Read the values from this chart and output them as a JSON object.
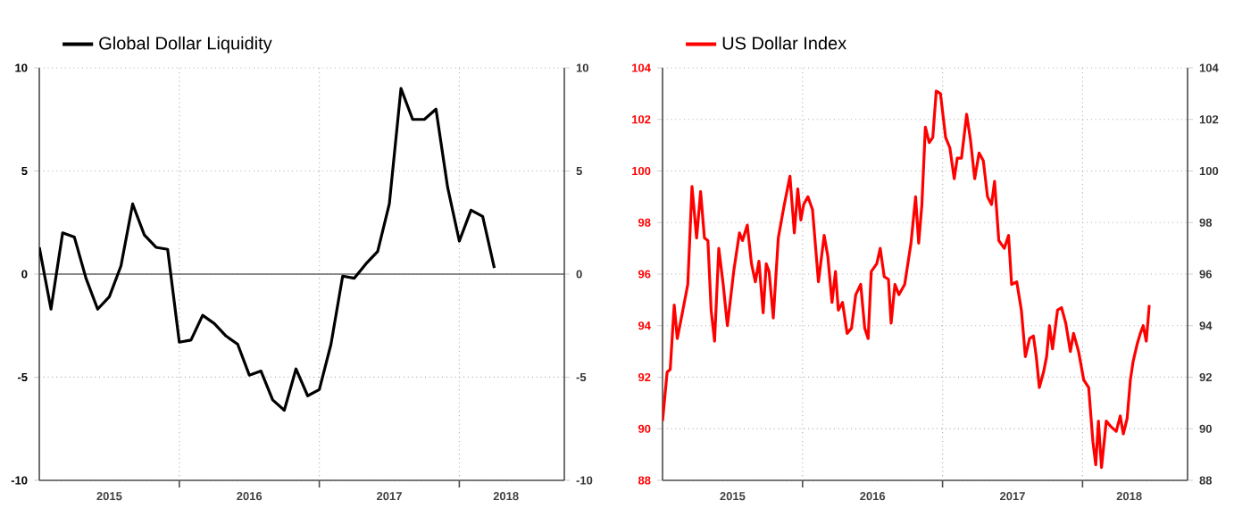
{
  "chart_data": [
    {
      "type": "line",
      "x": [
        "2015-01",
        "2015-02",
        "2015-03",
        "2015-04",
        "2015-05",
        "2015-06",
        "2015-07",
        "2015-08",
        "2015-09",
        "2015-10",
        "2015-11",
        "2015-12",
        "2016-01",
        "2016-02",
        "2016-03",
        "2016-04",
        "2016-05",
        "2016-06",
        "2016-07",
        "2016-08",
        "2016-09",
        "2016-10",
        "2016-11",
        "2016-12",
        "2017-01",
        "2017-02",
        "2017-03",
        "2017-04",
        "2017-05",
        "2017-06",
        "2017-07",
        "2017-08",
        "2017-09",
        "2017-10",
        "2017-11",
        "2017-12",
        "2018-01",
        "2018-02",
        "2018-03",
        "2018-04"
      ],
      "series": [
        {
          "name": "Global Dollar Liquidity",
          "color": "#000000",
          "values": [
            1.3,
            -1.7,
            2.0,
            1.8,
            -0.2,
            -1.7,
            -1.1,
            0.4,
            3.4,
            1.9,
            1.3,
            1.2,
            -3.3,
            -3.2,
            -2.0,
            -2.4,
            -3.0,
            -3.4,
            -4.9,
            -4.7,
            -6.1,
            -6.6,
            -4.6,
            -5.9,
            -5.6,
            -3.4,
            -0.1,
            -0.2,
            0.5,
            1.1,
            3.4,
            9.0,
            7.5,
            7.5,
            8.0,
            4.2,
            1.6,
            3.1,
            2.8,
            0.3
          ]
        }
      ],
      "xlim": [
        "2015-01",
        "2018-10"
      ],
      "xticks": [
        {
          "value": "2015-07",
          "label": "2015"
        },
        {
          "value": "2016-01",
          "label": null
        },
        {
          "value": "2016-07",
          "label": "2016"
        },
        {
          "value": "2017-01",
          "label": null
        },
        {
          "value": "2017-07",
          "label": "2017"
        },
        {
          "value": "2018-01",
          "label": null
        },
        {
          "value": "2018-05",
          "label": "2018"
        }
      ],
      "ylim": [
        -10,
        10
      ],
      "yticks": [
        -10,
        -5,
        0,
        5,
        10
      ],
      "y2lim": [
        -10,
        10
      ],
      "y2ticks": [
        -10,
        -5,
        0,
        5,
        10
      ],
      "ref_lines": [
        {
          "axis": "y",
          "value": 0
        }
      ],
      "grid": true,
      "legend": "top left"
    },
    {
      "type": "line",
      "x": [
        "2015-01-01",
        "2015-01-13",
        "2015-01-21",
        "2015-02-01",
        "2015-02-09",
        "2015-02-21",
        "2015-03-06",
        "2015-03-17",
        "2015-03-29",
        "2015-04-09",
        "2015-04-19",
        "2015-04-28",
        "2015-05-06",
        "2015-05-15",
        "2015-05-26",
        "2015-06-07",
        "2015-06-18",
        "2015-07-04",
        "2015-07-19",
        "2015-07-27",
        "2015-08-09",
        "2015-08-20",
        "2015-08-30",
        "2015-09-09",
        "2015-09-20",
        "2015-09-28",
        "2015-10-05",
        "2015-10-16",
        "2015-10-29",
        "2015-11-13",
        "2015-11-29",
        "2015-12-10",
        "2015-12-19",
        "2015-12-27",
        "2016-01-04",
        "2016-01-15",
        "2016-01-27",
        "2016-02-12",
        "2016-02-27",
        "2016-03-06",
        "2016-03-17",
        "2016-03-26",
        "2016-04-03",
        "2016-04-14",
        "2016-04-26",
        "2016-05-07",
        "2016-05-18",
        "2016-05-31",
        "2016-06-11",
        "2016-06-20",
        "2016-06-28",
        "2016-07-12",
        "2016-07-21",
        "2016-08-01",
        "2016-08-12",
        "2016-08-19",
        "2016-08-29",
        "2016-09-09",
        "2016-09-24",
        "2016-10-10",
        "2016-10-22",
        "2016-10-30",
        "2016-11-08",
        "2016-11-17",
        "2016-11-27",
        "2016-12-06",
        "2016-12-15",
        "2016-12-26",
        "2017-01-09",
        "2017-01-20",
        "2017-02-01",
        "2017-02-09",
        "2017-02-20",
        "2017-03-03",
        "2017-03-13",
        "2017-03-24",
        "2017-04-05",
        "2017-04-16",
        "2017-04-27",
        "2017-05-07",
        "2017-05-15",
        "2017-05-26",
        "2017-06-10",
        "2017-06-21",
        "2017-06-29",
        "2017-07-12",
        "2017-07-24",
        "2017-08-04",
        "2017-08-15",
        "2017-08-25",
        "2017-09-02",
        "2017-09-10",
        "2017-09-21",
        "2017-09-29",
        "2017-10-06",
        "2017-10-14",
        "2017-10-27",
        "2017-11-07",
        "2017-11-18",
        "2017-11-30",
        "2017-12-08",
        "2017-12-21",
        "2018-01-04",
        "2018-01-17",
        "2018-01-28",
        "2018-02-05",
        "2018-02-12",
        "2018-02-20",
        "2018-03-02",
        "2018-03-13",
        "2018-03-28",
        "2018-04-08",
        "2018-04-16",
        "2018-04-26",
        "2018-05-04",
        "2018-05-11",
        "2018-05-22",
        "2018-05-30",
        "2018-06-07",
        "2018-06-15",
        "2018-06-23"
      ],
      "series": [
        {
          "name": "US Dollar Index",
          "color": "#ff0000",
          "values": [
            90.3,
            92.2,
            92.3,
            94.8,
            93.5,
            94.4,
            95.6,
            99.4,
            97.4,
            99.2,
            97.4,
            97.3,
            94.6,
            93.4,
            97.0,
            95.6,
            94.0,
            96.1,
            97.6,
            97.3,
            97.9,
            96.4,
            95.7,
            96.5,
            94.5,
            96.4,
            96.1,
            94.3,
            97.4,
            98.6,
            99.8,
            97.6,
            99.3,
            98.1,
            98.7,
            99.0,
            98.5,
            95.7,
            97.5,
            96.7,
            94.9,
            96.1,
            94.6,
            94.9,
            93.7,
            93.9,
            95.2,
            95.6,
            93.9,
            93.5,
            96.1,
            96.4,
            97.0,
            95.9,
            95.8,
            94.1,
            95.6,
            95.2,
            95.6,
            97.2,
            99.0,
            97.2,
            98.7,
            101.7,
            101.1,
            101.3,
            103.1,
            103.0,
            101.3,
            100.9,
            99.7,
            100.5,
            100.5,
            102.2,
            101.2,
            99.7,
            100.7,
            100.4,
            99.0,
            98.7,
            99.6,
            97.3,
            97.0,
            97.5,
            95.6,
            95.7,
            94.6,
            92.8,
            93.5,
            93.6,
            92.8,
            91.6,
            92.2,
            92.8,
            94.0,
            93.1,
            94.6,
            94.7,
            94.1,
            93.0,
            93.7,
            93.0,
            91.9,
            91.6,
            89.5,
            88.6,
            90.3,
            88.5,
            90.3,
            90.1,
            89.9,
            90.5,
            89.8,
            90.4,
            91.9,
            92.6,
            93.3,
            93.7,
            94.0,
            93.4,
            94.8
          ]
        }
      ],
      "xlim": [
        "2015-01",
        "2018-10"
      ],
      "xticks": [
        {
          "value": "2015-07",
          "label": "2015"
        },
        {
          "value": "2016-01",
          "label": null
        },
        {
          "value": "2016-07",
          "label": "2016"
        },
        {
          "value": "2017-01",
          "label": null
        },
        {
          "value": "2017-07",
          "label": "2017"
        },
        {
          "value": "2018-01",
          "label": null
        },
        {
          "value": "2018-05",
          "label": "2018"
        }
      ],
      "ylim": [
        88,
        104
      ],
      "yticks": [
        88,
        90,
        92,
        94,
        96,
        98,
        100,
        102,
        104
      ],
      "y2lim": [
        88,
        104
      ],
      "y2ticks": [
        88,
        90,
        92,
        94,
        96,
        98,
        100,
        102,
        104
      ],
      "grid": true,
      "legend": "top left"
    }
  ]
}
